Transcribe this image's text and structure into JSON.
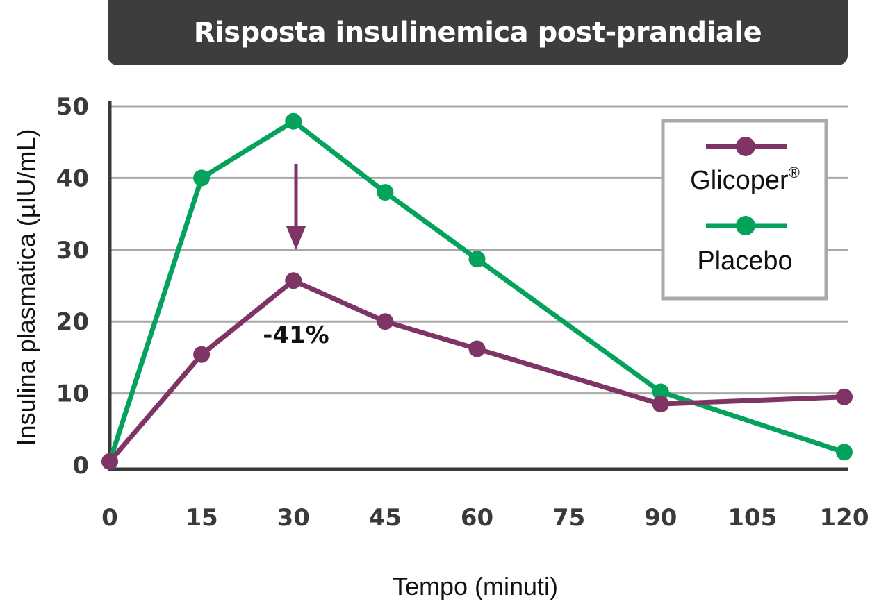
{
  "chart_data": {
    "type": "line",
    "title": "Risposta insulinemica post-prandiale",
    "xlabel": "Tempo (minuti)",
    "ylabel": "Insulina plasmatica (µIU/mL)",
    "xlim": [
      0,
      120
    ],
    "ylim": [
      0,
      50
    ],
    "xticks": [
      0,
      15,
      30,
      45,
      60,
      75,
      90,
      105,
      120
    ],
    "yticks": [
      0,
      10,
      20,
      30,
      40,
      50
    ],
    "grid": true,
    "legend": "top-right",
    "series": [
      {
        "name": "Glicoper®",
        "color": "#7e3464",
        "x": [
          0,
          15,
          30,
          45,
          60,
          90,
          120
        ],
        "y": [
          0.5,
          15.4,
          25.7,
          20.0,
          16.2,
          8.5,
          9.5
        ]
      },
      {
        "name": "Placebo",
        "color": "#05a25c",
        "x": [
          0,
          15,
          30,
          45,
          60,
          90,
          120
        ],
        "y": [
          0.5,
          40.0,
          47.9,
          38.0,
          28.7,
          10.2,
          1.8
        ]
      }
    ],
    "annotations": [
      {
        "text": "-41%",
        "x": 30
      }
    ]
  }
}
